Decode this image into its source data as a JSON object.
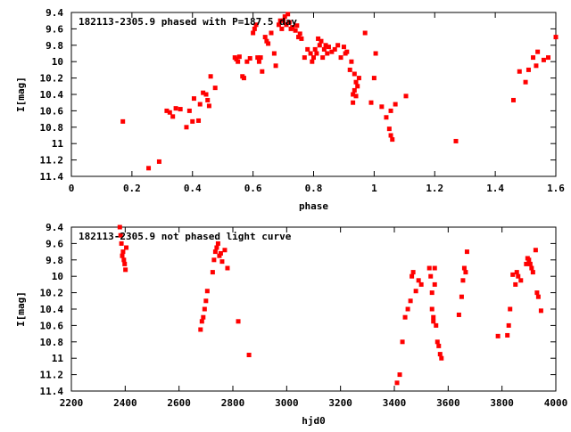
{
  "chart_data": [
    {
      "type": "scatter",
      "title": "182113-2305.9 phased with P=187.5 day",
      "xlabel": "phase",
      "ylabel": "I[mag]",
      "xlim": [
        0,
        1.6
      ],
      "ylim": [
        11.4,
        9.4
      ],
      "y_inverted": true,
      "grid": false,
      "marker_color": "#ff0000",
      "x_ticks": [
        {
          "value": 0,
          "label": "0"
        },
        {
          "value": 0.2,
          "label": "0.2"
        },
        {
          "value": 0.4,
          "label": "0.4"
        },
        {
          "value": 0.6,
          "label": "0.6"
        },
        {
          "value": 0.8,
          "label": "0.8"
        },
        {
          "value": 1,
          "label": "1"
        },
        {
          "value": 1.2,
          "label": "1.2"
        },
        {
          "value": 1.4,
          "label": "1.4"
        },
        {
          "value": 1.6,
          "label": "1.6"
        }
      ],
      "y_ticks": [
        {
          "value": 9.4,
          "label": "9.4"
        },
        {
          "value": 9.6,
          "label": "9.6"
        },
        {
          "value": 9.8,
          "label": "9.8"
        },
        {
          "value": 10,
          "label": "10"
        },
        {
          "value": 10.2,
          "label": "10.2"
        },
        {
          "value": 10.4,
          "label": "10.4"
        },
        {
          "value": 10.6,
          "label": "10.6"
        },
        {
          "value": 10.8,
          "label": "10.8"
        },
        {
          "value": 11,
          "label": "11"
        },
        {
          "value": 11.2,
          "label": "11.2"
        },
        {
          "value": 11.4,
          "label": "11.4"
        }
      ],
      "series": [
        {
          "x": [
            0.17,
            0.255,
            0.29,
            0.315,
            0.325,
            0.335,
            0.345,
            0.36,
            0.38,
            0.39,
            0.4,
            0.405,
            0.42,
            0.425,
            0.435,
            0.445,
            0.45,
            0.455,
            0.46,
            0.475,
            0.54,
            0.545,
            0.55,
            0.555,
            0.565,
            0.57,
            0.58,
            0.59,
            0.6,
            0.605,
            0.61,
            0.615,
            0.62,
            0.625,
            0.63,
            0.64,
            0.645,
            0.65,
            0.66,
            0.67,
            0.675,
            0.685,
            0.69,
            0.695,
            0.7,
            0.705,
            0.71,
            0.715,
            0.72,
            0.725,
            0.73,
            0.74,
            0.745,
            0.75,
            0.755,
            0.76,
            0.77,
            0.78,
            0.79,
            0.795,
            0.8,
            0.805,
            0.81,
            0.815,
            0.82,
            0.825,
            0.83,
            0.835,
            0.84,
            0.845,
            0.85,
            0.86,
            0.87,
            0.88,
            0.89,
            0.9,
            0.905,
            0.91,
            0.92,
            0.925,
            0.93,
            0.93,
            0.935,
            0.935,
            0.94,
            0.94,
            0.945,
            0.95,
            0.97,
            0.99,
            1.0,
            1.005,
            1.025,
            1.04,
            1.05,
            1.055,
            1.055,
            1.06,
            1.07,
            1.105,
            1.27,
            1.46,
            1.48,
            1.5,
            1.51,
            1.525,
            1.535,
            1.54,
            1.56,
            1.575,
            1.6
          ],
          "y": [
            10.73,
            11.3,
            11.22,
            10.6,
            10.62,
            10.67,
            10.57,
            10.58,
            10.8,
            10.6,
            10.73,
            10.45,
            10.72,
            10.52,
            10.38,
            10.4,
            10.47,
            10.54,
            10.18,
            10.32,
            9.95,
            9.97,
            10.0,
            9.94,
            10.18,
            10.2,
            10.0,
            9.96,
            9.65,
            9.6,
            9.55,
            9.95,
            10.0,
            9.95,
            10.12,
            9.7,
            9.75,
            9.78,
            9.65,
            9.9,
            10.05,
            9.55,
            9.5,
            9.6,
            9.5,
            9.45,
            9.55,
            9.42,
            9.52,
            9.6,
            9.58,
            9.62,
            9.56,
            9.7,
            9.66,
            9.72,
            9.95,
            9.85,
            9.9,
            10.0,
            9.95,
            9.85,
            9.9,
            9.72,
            9.8,
            9.75,
            9.95,
            9.85,
            9.8,
            9.9,
            9.82,
            9.88,
            9.85,
            9.8,
            9.95,
            9.82,
            9.9,
            9.88,
            10.1,
            10.0,
            10.4,
            10.5,
            10.35,
            10.15,
            10.25,
            10.42,
            10.3,
            10.2,
            9.65,
            10.5,
            10.2,
            9.9,
            10.55,
            10.68,
            10.82,
            10.6,
            10.9,
            10.95,
            10.52,
            10.42,
            10.97,
            10.47,
            10.12,
            10.25,
            10.1,
            9.95,
            10.05,
            9.88,
            9.98,
            9.95,
            9.7
          ]
        }
      ]
    },
    {
      "type": "scatter",
      "title": "182113-2305.9 not phased light curve",
      "xlabel": "hjd0",
      "ylabel": "I[mag]",
      "xlim": [
        2200,
        4000
      ],
      "ylim": [
        11.4,
        9.4
      ],
      "y_inverted": true,
      "grid": false,
      "marker_color": "#ff0000",
      "x_ticks": [
        {
          "value": 2200,
          "label": "2200"
        },
        {
          "value": 2400,
          "label": "2400"
        },
        {
          "value": 2600,
          "label": "2600"
        },
        {
          "value": 2800,
          "label": "2800"
        },
        {
          "value": 3000,
          "label": "3000"
        },
        {
          "value": 3200,
          "label": "3200"
        },
        {
          "value": 3400,
          "label": "3400"
        },
        {
          "value": 3600,
          "label": "3600"
        },
        {
          "value": 3800,
          "label": "3800"
        },
        {
          "value": 4000,
          "label": "4000"
        }
      ],
      "y_ticks": [
        {
          "value": 9.4,
          "label": "9.4"
        },
        {
          "value": 9.6,
          "label": "9.6"
        },
        {
          "value": 9.8,
          "label": "9.8"
        },
        {
          "value": 10,
          "label": "10"
        },
        {
          "value": 10.2,
          "label": "10.2"
        },
        {
          "value": 10.4,
          "label": "10.4"
        },
        {
          "value": 10.6,
          "label": "10.6"
        },
        {
          "value": 10.8,
          "label": "10.8"
        },
        {
          "value": 11,
          "label": "11"
        },
        {
          "value": 11.2,
          "label": "11.2"
        },
        {
          "value": 11.4,
          "label": "11.4"
        }
      ],
      "series": [
        {
          "x": [
            2380,
            2383,
            2386,
            2389,
            2392,
            2395,
            2398,
            2401,
            2404,
            2680,
            2685,
            2690,
            2695,
            2700,
            2705,
            2725,
            2730,
            2735,
            2740,
            2745,
            2750,
            2755,
            2760,
            2770,
            2780,
            2820,
            2860,
            3410,
            3420,
            3430,
            3440,
            3450,
            3460,
            3465,
            3470,
            3480,
            3490,
            3500,
            3530,
            3535,
            3540,
            3540,
            3545,
            3545,
            3550,
            3550,
            3555,
            3560,
            3565,
            3570,
            3575,
            3640,
            3650,
            3655,
            3660,
            3665,
            3670,
            3785,
            3820,
            3825,
            3830,
            3840,
            3850,
            3855,
            3860,
            3870,
            3890,
            3895,
            3900,
            3905,
            3910,
            3915,
            3925,
            3930,
            3935,
            3945
          ],
          "y": [
            9.4,
            9.5,
            9.6,
            9.75,
            9.7,
            9.8,
            9.85,
            9.92,
            9.65,
            10.65,
            10.55,
            10.5,
            10.4,
            10.3,
            10.18,
            9.95,
            9.8,
            9.7,
            9.65,
            9.6,
            9.75,
            9.72,
            9.82,
            9.68,
            9.9,
            10.55,
            10.96,
            11.3,
            11.2,
            10.8,
            10.5,
            10.4,
            10.3,
            10.0,
            9.95,
            10.18,
            10.05,
            10.1,
            9.9,
            10.0,
            10.2,
            10.4,
            10.5,
            10.55,
            10.1,
            9.9,
            10.6,
            10.8,
            10.85,
            10.95,
            11.0,
            10.47,
            10.25,
            10.05,
            9.9,
            9.95,
            9.7,
            10.73,
            10.72,
            10.6,
            10.4,
            9.98,
            10.1,
            9.95,
            10.0,
            10.05,
            9.85,
            9.78,
            9.8,
            9.85,
            9.9,
            9.95,
            9.68,
            10.2,
            10.25,
            10.42
          ]
        }
      ]
    }
  ]
}
